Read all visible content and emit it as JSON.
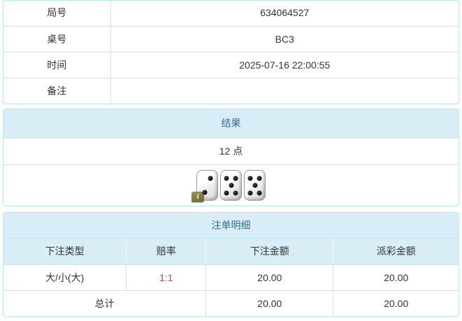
{
  "colors": {
    "panel_border": "#bce8f1",
    "heading_bg": "#d9edf7",
    "heading_text": "#31708f",
    "row_divider": "#dddddd",
    "odds_red": "#e4393c",
    "badge_olive": "#7e7648"
  },
  "info_table": {
    "rows": [
      {
        "label": "局号",
        "value": "634064527"
      },
      {
        "label": "桌号",
        "value": "BC3"
      },
      {
        "label": "时间",
        "value": "2025-07-16 22:00:55"
      },
      {
        "label": "备注",
        "value": ""
      }
    ]
  },
  "result_panel": {
    "title": "结果",
    "points": "12 点",
    "dice": [
      2,
      5,
      5
    ],
    "info_icon": "i"
  },
  "bets_panel": {
    "title": "注单明细",
    "columns": [
      "下注类型",
      "赔率",
      "下注金额",
      "派彩金额"
    ],
    "rows": [
      {
        "type": "大/小(大)",
        "odds": "1:1",
        "bet": "20.00",
        "payout": "20.00"
      }
    ],
    "total": {
      "label": "总计",
      "bet": "20.00",
      "payout": "20.00"
    }
  }
}
